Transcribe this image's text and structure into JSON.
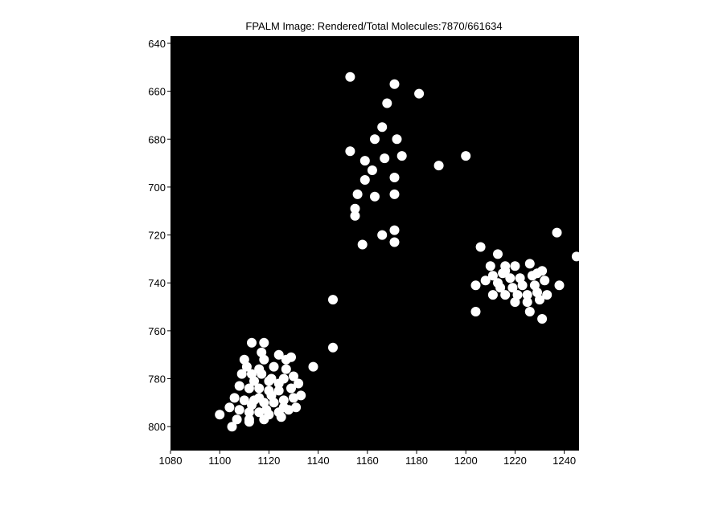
{
  "chart_data": {
    "type": "scatter",
    "title": "FPALM Image: Rendered/Total Molecules:7870/661634",
    "xlabel": "",
    "ylabel": "",
    "xlim": [
      1080,
      1246
    ],
    "ylim": [
      637,
      810
    ],
    "y_reversed": true,
    "grid": false,
    "background_color": "#000000",
    "marker_color": "#ffffff",
    "xticks": [
      1080,
      1100,
      1120,
      1140,
      1160,
      1180,
      1200,
      1220,
      1240
    ],
    "yticks": [
      640,
      660,
      680,
      700,
      720,
      740,
      760,
      780,
      800
    ],
    "points": [
      [
        1153,
        654
      ],
      [
        1171,
        657
      ],
      [
        1181,
        661
      ],
      [
        1168,
        665
      ],
      [
        1166,
        675
      ],
      [
        1163,
        680
      ],
      [
        1172,
        680
      ],
      [
        1153,
        685
      ],
      [
        1174,
        687
      ],
      [
        1159,
        689
      ],
      [
        1167,
        688
      ],
      [
        1189,
        691
      ],
      [
        1200,
        687
      ],
      [
        1162,
        693
      ],
      [
        1159,
        697
      ],
      [
        1171,
        696
      ],
      [
        1156,
        703
      ],
      [
        1163,
        704
      ],
      [
        1171,
        703
      ],
      [
        1155,
        709
      ],
      [
        1155,
        712
      ],
      [
        1171,
        718
      ],
      [
        1166,
        720
      ],
      [
        1171,
        723
      ],
      [
        1158,
        724
      ],
      [
        1206,
        725
      ],
      [
        1213,
        728
      ],
      [
        1237,
        719
      ],
      [
        1245,
        729
      ],
      [
        1210,
        733
      ],
      [
        1216,
        735
      ],
      [
        1220,
        733
      ],
      [
        1226,
        732
      ],
      [
        1231,
        735
      ],
      [
        1218,
        738
      ],
      [
        1222,
        738
      ],
      [
        1227,
        737
      ],
      [
        1213,
        740
      ],
      [
        1208,
        739
      ],
      [
        1214,
        742
      ],
      [
        1219,
        742
      ],
      [
        1223,
        741
      ],
      [
        1228,
        741
      ],
      [
        1232,
        739
      ],
      [
        1216,
        745
      ],
      [
        1221,
        745
      ],
      [
        1225,
        745
      ],
      [
        1229,
        744
      ],
      [
        1211,
        745
      ],
      [
        1220,
        748
      ],
      [
        1225,
        748
      ],
      [
        1230,
        747
      ],
      [
        1204,
        741
      ],
      [
        1215,
        736
      ],
      [
        1229,
        736
      ],
      [
        1238,
        741
      ],
      [
        1226,
        752
      ],
      [
        1204,
        752
      ],
      [
        1231,
        755
      ],
      [
        1211,
        737
      ],
      [
        1216,
        733
      ],
      [
        1233,
        745
      ],
      [
        1146,
        747
      ],
      [
        1146,
        767
      ],
      [
        1138,
        775
      ],
      [
        1113,
        765
      ],
      [
        1118,
        765
      ],
      [
        1124,
        770
      ],
      [
        1129,
        771
      ],
      [
        1110,
        772
      ],
      [
        1118,
        772
      ],
      [
        1122,
        775
      ],
      [
        1127,
        776
      ],
      [
        1109,
        778
      ],
      [
        1113,
        778
      ],
      [
        1117,
        778
      ],
      [
        1121,
        780
      ],
      [
        1126,
        780
      ],
      [
        1130,
        779
      ],
      [
        1108,
        783
      ],
      [
        1112,
        784
      ],
      [
        1116,
        784
      ],
      [
        1120,
        785
      ],
      [
        1124,
        785
      ],
      [
        1129,
        784
      ],
      [
        1132,
        782
      ],
      [
        1106,
        788
      ],
      [
        1110,
        789
      ],
      [
        1114,
        789
      ],
      [
        1118,
        790
      ],
      [
        1122,
        790
      ],
      [
        1126,
        789
      ],
      [
        1130,
        788
      ],
      [
        1133,
        787
      ],
      [
        1104,
        792
      ],
      [
        1108,
        793
      ],
      [
        1112,
        794
      ],
      [
        1116,
        794
      ],
      [
        1120,
        795
      ],
      [
        1124,
        794
      ],
      [
        1128,
        793
      ],
      [
        1131,
        792
      ],
      [
        1100,
        795
      ],
      [
        1107,
        797
      ],
      [
        1112,
        797
      ],
      [
        1118,
        797
      ],
      [
        1125,
        796
      ],
      [
        1112,
        798
      ],
      [
        1105,
        800
      ],
      [
        1116,
        776
      ],
      [
        1120,
        781
      ],
      [
        1116,
        788
      ],
      [
        1124,
        782
      ],
      [
        1114,
        781
      ],
      [
        1121,
        787
      ],
      [
        1127,
        772
      ],
      [
        1111,
        775
      ],
      [
        1119,
        793
      ],
      [
        1126,
        792
      ],
      [
        1117,
        769
      ],
      [
        1113,
        791
      ]
    ]
  }
}
